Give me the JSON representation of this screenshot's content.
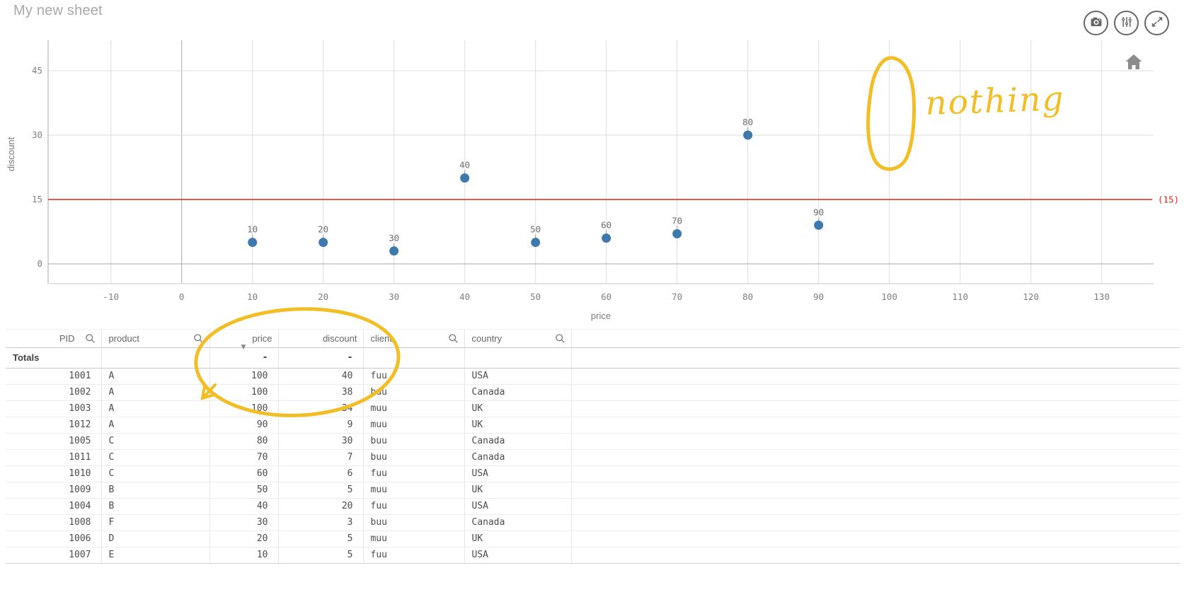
{
  "page": {
    "title": "My new sheet"
  },
  "toolbar": {
    "buttons": [
      {
        "icon": "camera-icon",
        "action": "take-snapshot"
      },
      {
        "icon": "sliders-icon",
        "action": "chart-exploration"
      },
      {
        "icon": "expand-icon",
        "action": "full-screen"
      }
    ]
  },
  "chart_data": {
    "type": "scatter",
    "xlabel": "price",
    "ylabel": "discount",
    "xticks": [
      -10,
      0,
      10,
      20,
      30,
      40,
      50,
      60,
      70,
      80,
      90,
      100,
      110,
      120,
      130
    ],
    "yticks": [
      0,
      15,
      30,
      45
    ],
    "xlim": [
      -18.9,
      137.3
    ],
    "ylim": [
      -4.6,
      52.1
    ],
    "grid": true,
    "point_color": "#3e79ae",
    "points": [
      {
        "label": "10",
        "price": 10,
        "discount": 5
      },
      {
        "label": "20",
        "price": 20,
        "discount": 5
      },
      {
        "label": "30",
        "price": 30,
        "discount": 3
      },
      {
        "label": "40",
        "price": 40,
        "discount": 20
      },
      {
        "label": "50",
        "price": 50,
        "discount": 5
      },
      {
        "label": "60",
        "price": 60,
        "discount": 6
      },
      {
        "label": "70",
        "price": 70,
        "discount": 7
      },
      {
        "label": "80",
        "price": 80,
        "discount": 30
      },
      {
        "label": "90",
        "price": 90,
        "discount": 9
      }
    ],
    "reference_line": {
      "axis": "y",
      "value": 15,
      "label": "(15)",
      "color": "#e2241b"
    },
    "legend": false
  },
  "table": {
    "columns": [
      {
        "label": "PID",
        "align": "right",
        "searchable": true,
        "sorted": ""
      },
      {
        "label": "product",
        "align": "left",
        "searchable": true,
        "sorted": ""
      },
      {
        "label": "price",
        "align": "right",
        "searchable": false,
        "sorted": "desc"
      },
      {
        "label": "discount",
        "align": "right",
        "searchable": false,
        "sorted": ""
      },
      {
        "label": "client",
        "align": "left",
        "searchable": true,
        "sorted": ""
      },
      {
        "label": "country",
        "align": "left",
        "searchable": true,
        "sorted": ""
      },
      {
        "label": "",
        "align": "left",
        "searchable": false,
        "sorted": ""
      }
    ],
    "totals": {
      "label": "Totals",
      "values": [
        "Totals",
        "",
        "-",
        "-",
        "",
        "",
        ""
      ]
    },
    "rows": [
      [
        "1001",
        "A",
        "100",
        "40",
        "fuu",
        "USA",
        ""
      ],
      [
        "1002",
        "A",
        "100",
        "38",
        "buu",
        "Canada",
        ""
      ],
      [
        "1003",
        "A",
        "100",
        "34",
        "muu",
        "UK",
        ""
      ],
      [
        "1012",
        "A",
        "90",
        "9",
        "muu",
        "UK",
        ""
      ],
      [
        "1005",
        "C",
        "80",
        "30",
        "buu",
        "Canada",
        ""
      ],
      [
        "1011",
        "C",
        "70",
        "7",
        "buu",
        "Canada",
        ""
      ],
      [
        "1010",
        "C",
        "60",
        "6",
        "fuu",
        "USA",
        ""
      ],
      [
        "1009",
        "B",
        "50",
        "5",
        "muu",
        "UK",
        ""
      ],
      [
        "1004",
        "B",
        "40",
        "20",
        "fuu",
        "USA",
        ""
      ],
      [
        "1008",
        "F",
        "30",
        "3",
        "buu",
        "Canada",
        ""
      ],
      [
        "1006",
        "D",
        "20",
        "5",
        "muu",
        "UK",
        ""
      ],
      [
        "1007",
        "E",
        "10",
        "5",
        "fuu",
        "USA",
        ""
      ]
    ]
  },
  "icons": {
    "sort_desc": "▼",
    "search": "magnifier",
    "home": "home"
  },
  "annotations": {
    "color": "#F2BE26",
    "note_text": "nothing"
  },
  "colors": {
    "point": "#3e79ae",
    "reference": "#e2241b",
    "grid": "#dcdcdc",
    "axis": "#a9a9a9",
    "annotation": "#F2BE26"
  }
}
